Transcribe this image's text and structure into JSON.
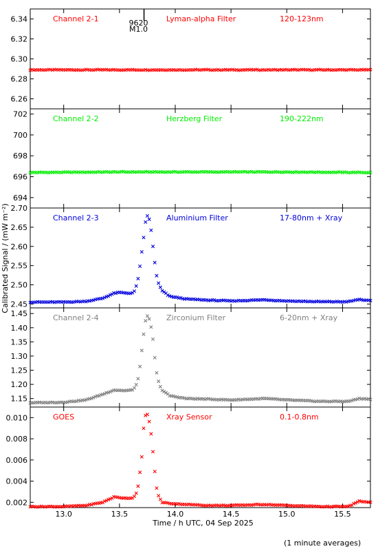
{
  "chart_data": {
    "type": "scatter",
    "xlabel": "Time / h UTC, 04 Sep 2025",
    "ylabel": "Calibrated Signal / (mW m⁻²)",
    "xlim": [
      12.7,
      15.75
    ],
    "xticks": [
      13.0,
      13.5,
      14.0,
      14.5,
      15.0,
      15.5
    ],
    "xtick_labels": [
      "13.0",
      "13.5",
      "14.0",
      "14.5",
      "15.0",
      "15.5"
    ],
    "footnote": "(1 minute averages)",
    "event_marker": {
      "x": 13.72,
      "label_top": "9620",
      "label_bottom": "M1.0"
    },
    "panels": [
      {
        "channel": "Channel 2-1",
        "filter": "Lyman-alpha Filter",
        "band": "120-123nm",
        "color": "#ff0000",
        "marker": "x",
        "ylim": [
          6.25,
          6.35
        ],
        "yticks": [
          6.26,
          6.28,
          6.3,
          6.32,
          6.34
        ],
        "ytick_labels": [
          "6.26",
          "6.28",
          "6.30",
          "6.32",
          "6.34"
        ],
        "points": [
          [
            12.7,
            6.289
          ],
          [
            13.5,
            6.289
          ],
          [
            14.0,
            6.289
          ],
          [
            15.0,
            6.289
          ],
          [
            15.75,
            6.289
          ]
        ]
      },
      {
        "channel": "Channel 2-2",
        "filter": "Herzberg Filter",
        "band": "190-222nm",
        "color": "#00ee00",
        "marker": "x",
        "ylim": [
          693.0,
          702.5
        ],
        "yticks": [
          694,
          696,
          698,
          700,
          702
        ],
        "ytick_labels": [
          "694",
          "696",
          "698",
          "700",
          "702"
        ],
        "points": [
          [
            12.7,
            696.4
          ],
          [
            13.5,
            696.45
          ],
          [
            14.0,
            696.45
          ],
          [
            15.0,
            696.45
          ],
          [
            15.75,
            696.4
          ]
        ]
      },
      {
        "channel": "Channel 2-3",
        "filter": "Aluminium Filter",
        "band": "17-80nm + Xray",
        "color": "#0000dd",
        "marker": "x",
        "ylim": [
          2.44,
          2.7
        ],
        "yticks": [
          2.45,
          2.5,
          2.55,
          2.6,
          2.65,
          2.7
        ],
        "ytick_labels": [
          "2.45",
          "2.50",
          "2.55",
          "2.60",
          "2.65",
          "2.70"
        ],
        "points": [
          [
            12.7,
            2.455
          ],
          [
            13.0,
            2.455
          ],
          [
            13.2,
            2.457
          ],
          [
            13.35,
            2.465
          ],
          [
            13.45,
            2.478
          ],
          [
            13.5,
            2.48
          ],
          [
            13.6,
            2.478
          ],
          [
            13.63,
            2.48
          ],
          [
            13.66,
            2.505
          ],
          [
            13.68,
            2.54
          ],
          [
            13.7,
            2.585
          ],
          [
            13.72,
            2.63
          ],
          [
            13.74,
            2.68
          ],
          [
            13.76,
            2.68
          ],
          [
            13.78,
            2.65
          ],
          [
            13.8,
            2.6
          ],
          [
            13.82,
            2.55
          ],
          [
            13.84,
            2.51
          ],
          [
            13.88,
            2.485
          ],
          [
            13.95,
            2.47
          ],
          [
            14.1,
            2.463
          ],
          [
            14.3,
            2.46
          ],
          [
            14.5,
            2.458
          ],
          [
            14.8,
            2.461
          ],
          [
            15.0,
            2.458
          ],
          [
            15.3,
            2.456
          ],
          [
            15.55,
            2.456
          ],
          [
            15.65,
            2.462
          ],
          [
            15.75,
            2.458
          ]
        ]
      },
      {
        "channel": "Channel 2-4",
        "filter": "Zirconium Filter",
        "band": "6-20nm + Xray",
        "color": "#7f7f7f",
        "marker": "x",
        "ylim": [
          1.12,
          1.47
        ],
        "yticks": [
          1.15,
          1.2,
          1.25,
          1.3,
          1.35,
          1.4,
          1.45
        ],
        "ytick_labels": [
          "1.15",
          "1.20",
          "1.25",
          "1.30",
          "1.35",
          "1.40",
          "1.45"
        ],
        "points": [
          [
            12.7,
            1.135
          ],
          [
            13.0,
            1.137
          ],
          [
            13.2,
            1.145
          ],
          [
            13.35,
            1.165
          ],
          [
            13.45,
            1.18
          ],
          [
            13.55,
            1.178
          ],
          [
            13.62,
            1.18
          ],
          [
            13.66,
            1.205
          ],
          [
            13.68,
            1.25
          ],
          [
            13.7,
            1.32
          ],
          [
            13.72,
            1.39
          ],
          [
            13.74,
            1.44
          ],
          [
            13.76,
            1.44
          ],
          [
            13.78,
            1.41
          ],
          [
            13.8,
            1.36
          ],
          [
            13.82,
            1.28
          ],
          [
            13.84,
            1.22
          ],
          [
            13.88,
            1.18
          ],
          [
            13.95,
            1.16
          ],
          [
            14.1,
            1.15
          ],
          [
            14.3,
            1.148
          ],
          [
            14.5,
            1.145
          ],
          [
            14.8,
            1.15
          ],
          [
            15.0,
            1.145
          ],
          [
            15.3,
            1.14
          ],
          [
            15.55,
            1.14
          ],
          [
            15.65,
            1.15
          ],
          [
            15.75,
            1.148
          ]
        ]
      },
      {
        "channel": "GOES",
        "filter": "Xray Sensor",
        "band": "0.1-0.8nm",
        "color": "#ff0000",
        "marker": "x",
        "ylim": [
          0.0015,
          0.011
        ],
        "yticks": [
          0.002,
          0.004,
          0.006,
          0.008,
          0.01
        ],
        "ytick_labels": [
          "0.002",
          "0.004",
          "0.006",
          "0.008",
          "0.010"
        ],
        "points": [
          [
            12.7,
            0.0016
          ],
          [
            13.0,
            0.0016
          ],
          [
            13.2,
            0.0017
          ],
          [
            13.35,
            0.002
          ],
          [
            13.45,
            0.0025
          ],
          [
            13.55,
            0.0024
          ],
          [
            13.62,
            0.0024
          ],
          [
            13.66,
            0.003
          ],
          [
            13.68,
            0.0045
          ],
          [
            13.7,
            0.0063
          ],
          [
            13.72,
            0.0095
          ],
          [
            13.74,
            0.0106
          ],
          [
            13.76,
            0.01
          ],
          [
            13.78,
            0.0088
          ],
          [
            13.8,
            0.0068
          ],
          [
            13.82,
            0.0045
          ],
          [
            13.84,
            0.0028
          ],
          [
            13.88,
            0.002
          ],
          [
            13.95,
            0.0019
          ],
          [
            14.1,
            0.0018
          ],
          [
            14.3,
            0.0017
          ],
          [
            14.5,
            0.0017
          ],
          [
            14.8,
            0.0018
          ],
          [
            15.0,
            0.0017
          ],
          [
            15.3,
            0.0016
          ],
          [
            15.55,
            0.0016
          ],
          [
            15.65,
            0.0021
          ],
          [
            15.75,
            0.002
          ]
        ]
      }
    ]
  }
}
